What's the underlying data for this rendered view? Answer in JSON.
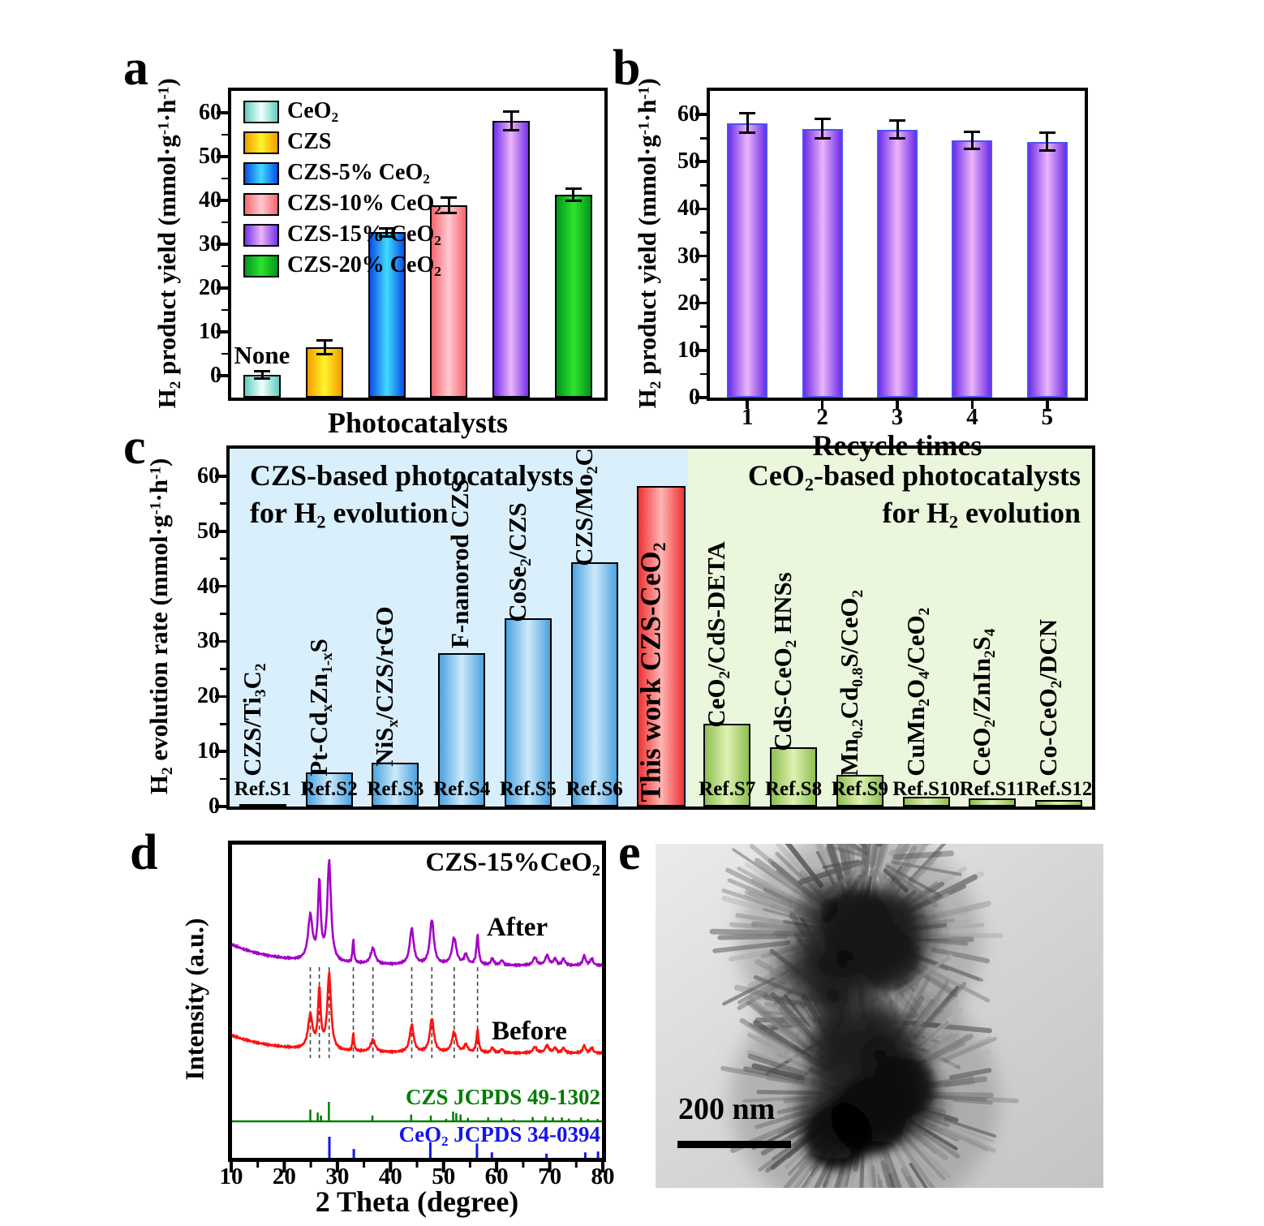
{
  "figure": {
    "background": "#ffffff"
  },
  "panels": {
    "a": {
      "letter": "a"
    },
    "b": {
      "letter": "b"
    },
    "c": {
      "letter": "c"
    },
    "d": {
      "letter": "d"
    },
    "e": {
      "letter": "e",
      "scale_label": "200 nm"
    }
  },
  "chart_data": [
    {
      "panel": "a",
      "type": "bar",
      "xlabel": "Photocatalysts",
      "ylabel": "H_{2} product yield (mmol·g^{-1}·h^{-1})",
      "ylim": [
        -5,
        65
      ],
      "yticks": [
        0,
        10,
        20,
        30,
        40,
        50,
        60
      ],
      "categories": [
        "CeO_{2}",
        "CZS",
        "CZS-5% CeO_{2}",
        "CZS-10% CeO_{2}",
        "CZS-15% CeO_{2}",
        "CZS-20% CeO_{2}"
      ],
      "values": [
        0.2,
        6.5,
        32.7,
        38.9,
        58.2,
        41.3
      ],
      "errors": [
        0.8,
        1.5,
        1.0,
        1.7,
        2.1,
        1.4
      ],
      "annotation": {
        "text": "None",
        "bar_index": 0
      },
      "series_colors": [
        {
          "edge": "#5FCDC0",
          "center": "#F2FFFB"
        },
        {
          "edge": "#F29B00",
          "center": "#FFF42A"
        },
        {
          "edge": "#0A4FE8",
          "center": "#41DAFF"
        },
        {
          "edge": "#F5686E",
          "center": "#FFC9D2"
        },
        {
          "edge": "#7430E8",
          "center": "#EBB5FA"
        },
        {
          "edge": "#00961B",
          "center": "#2FE32F"
        }
      ],
      "legend_position": "upper-left",
      "grid": false
    },
    {
      "panel": "b",
      "type": "bar",
      "xlabel": "Recycle times",
      "ylabel": "H_{2} product yield (mmol·g^{-1}·h^{-1})",
      "ylim": [
        0,
        65
      ],
      "yticks": [
        0,
        10,
        20,
        30,
        40,
        50,
        60
      ],
      "categories": [
        "1",
        "2",
        "3",
        "4",
        "5"
      ],
      "values": [
        58.2,
        57.0,
        56.8,
        54.5,
        54.2
      ],
      "errors": [
        2.1,
        2.0,
        1.9,
        1.8,
        1.9
      ],
      "bar_color": {
        "edge": "#6B2CE8",
        "center": "#EDB5FA",
        "border": "#4B55F2"
      },
      "grid": false
    },
    {
      "panel": "c",
      "type": "bar",
      "ylabel": "H_{2} evolution rate (mmol·g^{-1}·h^{-1})",
      "ylim": [
        0,
        65
      ],
      "yticks": [
        0,
        10,
        20,
        30,
        40,
        50,
        60
      ],
      "regions": {
        "left": {
          "titles": [
            "CZS-based photocatalysts",
            "for H_{2} evolution"
          ],
          "bg": "#D9EFFC"
        },
        "right": {
          "titles": [
            "CeO_{2}-based photocatalysts",
            "for H_{2} evolution"
          ],
          "bg": "#EAF7DC"
        },
        "split_fraction": 0.5315
      },
      "bars": [
        {
          "label": "CZS/Ti_{3}C_{2}",
          "ref": "Ref.S1",
          "value": 0.5,
          "color": "green_dark"
        },
        {
          "label": "Pt-Cd_{x}Zn_{1-x}S",
          "ref": "Ref.S2",
          "value": 6.2,
          "color": "blue"
        },
        {
          "label": "NiS_{x}/CZS/rGO",
          "ref": "Ref.S3",
          "value": 8.0,
          "color": "blue"
        },
        {
          "label": "F-nanorod CZS",
          "ref": "Ref.S4",
          "value": 27.8,
          "color": "blue"
        },
        {
          "label": "CoSe_{2}/CZS",
          "ref": "Ref.S5",
          "value": 34.2,
          "color": "blue"
        },
        {
          "label": "CZS/Mo_{2}C",
          "ref": "Ref.S6",
          "value": 44.3,
          "color": "blue"
        },
        {
          "label": "This work CZS-CeO_{2}",
          "ref": "",
          "value": 58.2,
          "color": "red",
          "emphasis": true
        },
        {
          "label": "CeO_{2}/CdS-DETA",
          "ref": "Ref.S7",
          "value": 15.0,
          "color": "green"
        },
        {
          "label": "CdS-CeO_{2} HNSs",
          "ref": "Ref.S8",
          "value": 10.8,
          "color": "green"
        },
        {
          "label": "Mn_{0.2}Cd_{0.8}S/CeO_{2}",
          "ref": "Ref.S9",
          "value": 5.8,
          "color": "green"
        },
        {
          "label": "CuMn_{2}O_{4}/CeO_{2}",
          "ref": "Ref.S10",
          "value": 1.8,
          "color": "green"
        },
        {
          "label": "CeO_{2}/ZnIn_{2}S_{4}",
          "ref": "Ref.S11",
          "value": 1.5,
          "color": "green"
        },
        {
          "label": "Co-CeO_{2}/DCN",
          "ref": "Ref.S12",
          "value": 1.2,
          "color": "green"
        }
      ],
      "palette": {
        "blue": {
          "edge": "#4CA2E0",
          "center": "#CDEAFB"
        },
        "red": {
          "edge": "#EE3132",
          "center": "#FFB6B4"
        },
        "green": {
          "edge": "#8FBE52",
          "center": "#DDF2B2"
        },
        "green_dark": {
          "edge": "#55721E",
          "center": "#9DC04E"
        }
      },
      "grid": false
    },
    {
      "panel": "d",
      "type": "line",
      "title": "CZS-15%CeO_{2}",
      "xlabel": "2 Theta (degree)",
      "ylabel": "Intensity (a.u.)",
      "xlim": [
        10,
        80
      ],
      "xticks": [
        10,
        20,
        30,
        40,
        50,
        60,
        70,
        80
      ],
      "series": [
        {
          "name": "After",
          "color": "#A400C8",
          "peaks": [
            [
              24.9,
              0.45,
              0.5
            ],
            [
              26.6,
              0.78,
              0.3
            ],
            [
              28.45,
              1.0,
              0.42
            ],
            [
              33.0,
              0.24,
              0.16
            ],
            [
              36.7,
              0.16,
              0.5
            ],
            [
              44.0,
              0.36,
              0.45
            ],
            [
              47.8,
              0.45,
              0.45
            ],
            [
              52.0,
              0.27,
              0.5
            ],
            [
              54.2,
              0.1,
              0.4
            ],
            [
              56.4,
              0.3,
              0.25
            ],
            [
              59.2,
              0.07,
              0.3
            ],
            [
              61.0,
              0.05,
              0.3
            ],
            [
              67.2,
              0.08,
              0.4
            ],
            [
              69.5,
              0.1,
              0.4
            ],
            [
              71.0,
              0.07,
              0.3
            ],
            [
              72.6,
              0.07,
              0.3
            ],
            [
              76.5,
              0.1,
              0.3
            ],
            [
              77.9,
              0.07,
              0.3
            ]
          ]
        },
        {
          "name": "Before",
          "color": "#FF1111",
          "peaks": [
            [
              24.9,
              0.45,
              0.5
            ],
            [
              26.6,
              0.78,
              0.3
            ],
            [
              28.45,
              1.0,
              0.42
            ],
            [
              33.0,
              0.24,
              0.16
            ],
            [
              36.7,
              0.16,
              0.5
            ],
            [
              44.0,
              0.36,
              0.45
            ],
            [
              47.8,
              0.45,
              0.45
            ],
            [
              52.0,
              0.27,
              0.5
            ],
            [
              54.2,
              0.1,
              0.4
            ],
            [
              56.4,
              0.3,
              0.25
            ],
            [
              59.2,
              0.07,
              0.3
            ],
            [
              61.0,
              0.05,
              0.3
            ],
            [
              67.2,
              0.08,
              0.4
            ],
            [
              69.5,
              0.1,
              0.4
            ],
            [
              71.0,
              0.07,
              0.3
            ],
            [
              72.6,
              0.07,
              0.3
            ],
            [
              76.5,
              0.1,
              0.3
            ],
            [
              77.9,
              0.07,
              0.3
            ]
          ]
        }
      ],
      "dashed_guides": [
        24.9,
        26.6,
        28.45,
        33.0,
        36.7,
        44.0,
        47.8,
        52.0,
        56.4
      ],
      "references": [
        {
          "name": "CZS JCPDS 49-1302",
          "color": "#007C00",
          "sticks": [
            [
              24.9,
              0.6
            ],
            [
              26.3,
              0.45
            ],
            [
              26.9,
              0.3
            ],
            [
              28.4,
              1.0
            ],
            [
              36.6,
              0.3
            ],
            [
              43.9,
              0.35
            ],
            [
              47.6,
              0.3
            ],
            [
              50.5,
              0.12
            ],
            [
              51.8,
              0.5
            ],
            [
              52.4,
              0.42
            ],
            [
              53.2,
              0.35
            ],
            [
              54.6,
              0.18
            ],
            [
              58.4,
              0.2
            ],
            [
              60.9,
              0.18
            ],
            [
              63.2,
              0.1
            ],
            [
              66.8,
              0.22
            ],
            [
              69.2,
              0.25
            ],
            [
              70.6,
              0.2
            ],
            [
              72.3,
              0.2
            ],
            [
              73.6,
              0.14
            ],
            [
              75.9,
              0.2
            ],
            [
              77.2,
              0.12
            ],
            [
              79.0,
              0.12
            ]
          ]
        },
        {
          "name": "CeO_{2} JCPDS 34-0394",
          "color": "#1414F0",
          "sticks": [
            [
              28.5,
              1.0
            ],
            [
              33.1,
              0.42
            ],
            [
              47.5,
              0.75
            ],
            [
              56.3,
              0.68
            ],
            [
              59.1,
              0.26
            ],
            [
              69.4,
              0.2
            ],
            [
              76.7,
              0.26
            ],
            [
              79.1,
              0.3
            ]
          ]
        }
      ],
      "grid": false
    }
  ]
}
